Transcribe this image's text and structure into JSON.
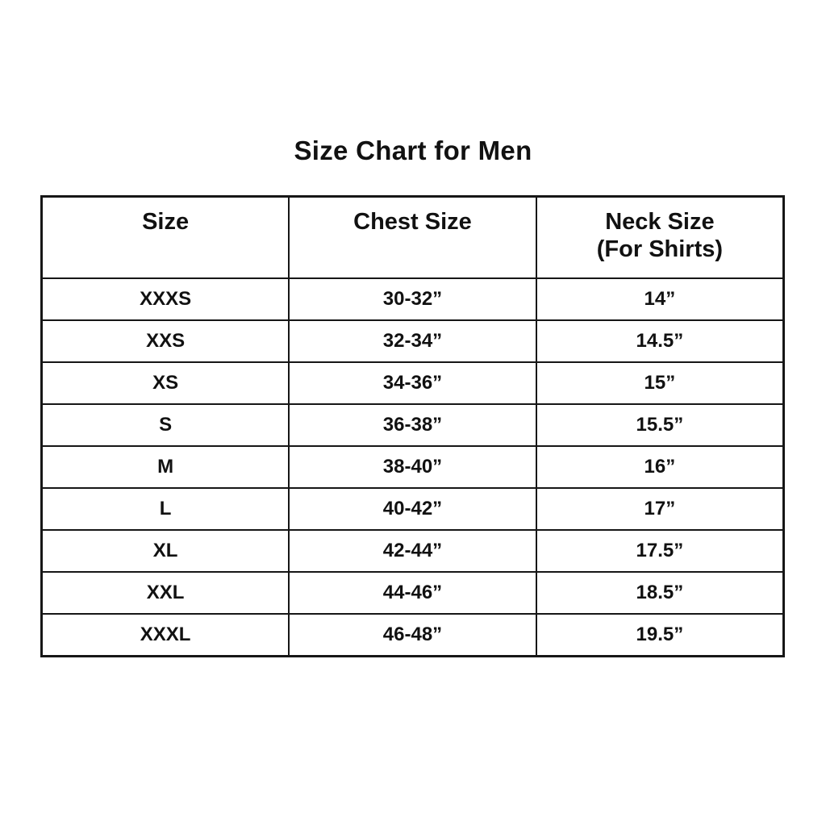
{
  "colors": {
    "background": "#ffffff",
    "text": "#111111",
    "border": "#161616"
  },
  "chart_data": {
    "type": "table",
    "title": "Size Chart for Men",
    "columns": [
      "Size",
      "Chest Size",
      "Neck Size\n(For Shirts)"
    ],
    "rows": [
      [
        "XXXS",
        "30-32”",
        "14”"
      ],
      [
        "XXS",
        "32-34”",
        "14.5”"
      ],
      [
        "XS",
        "34-36”",
        "15”"
      ],
      [
        "S",
        "36-38”",
        "15.5”"
      ],
      [
        "M",
        "38-40”",
        "16”"
      ],
      [
        "L",
        "40-42”",
        "17”"
      ],
      [
        "XL",
        "42-44”",
        "17.5”"
      ],
      [
        "XXL",
        "44-46”",
        "18.5”"
      ],
      [
        "XXXL",
        "46-48”",
        "19.5”"
      ]
    ],
    "layout": {
      "grid": "on",
      "column_alignment": "center",
      "header_lines_in_third_column": 2
    }
  }
}
